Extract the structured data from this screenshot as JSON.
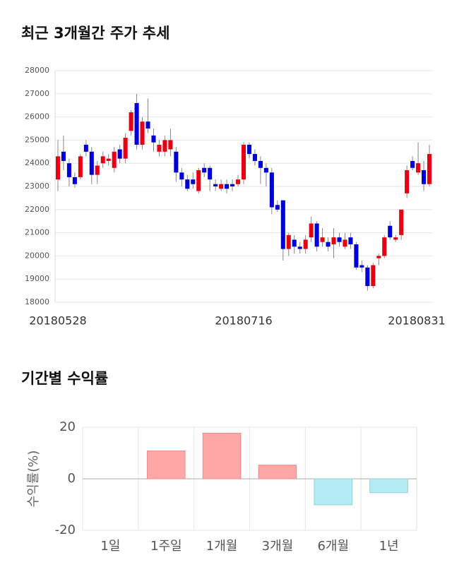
{
  "chart_data": [
    {
      "type": "candlestick",
      "title": "최근 3개월간 주가 추세",
      "categories": [
        "20180528",
        null,
        null,
        null,
        null,
        null,
        null,
        null,
        null,
        null,
        null,
        null,
        null,
        null,
        null,
        null,
        null,
        null,
        null,
        null,
        null,
        null,
        null,
        null,
        null,
        null,
        null,
        null,
        null,
        null,
        null,
        null,
        null,
        "20180716",
        null,
        null,
        null,
        null,
        null,
        null,
        null,
        null,
        null,
        null,
        null,
        null,
        null,
        null,
        null,
        null,
        null,
        null,
        null,
        null,
        null,
        null,
        null,
        null,
        null,
        null,
        null,
        null,
        null,
        null,
        null,
        null,
        "20180831"
      ],
      "open": [
        23300,
        24500,
        24000,
        23400,
        23400,
        24800,
        24500,
        23500,
        24000,
        24100,
        23800,
        24600,
        24200,
        25400,
        26600,
        24800,
        25800,
        25200,
        24500,
        24500,
        24600,
        24500,
        23600,
        23300,
        23300,
        22800,
        23800,
        23800,
        23100,
        22900,
        23100,
        23100,
        23100,
        23300,
        24800,
        24400,
        24100,
        23800,
        23600,
        22200,
        22400,
        20300,
        20700,
        20400,
        20300,
        20800,
        21400,
        20600,
        20600,
        20500,
        20800,
        20400,
        20800,
        20500,
        19600,
        19500,
        18700,
        19900,
        20000,
        21300,
        20700,
        20900,
        22700,
        24100,
        23600,
        23700,
        23100
      ],
      "high": [
        25000,
        25200,
        24200,
        23600,
        24400,
        25000,
        24700,
        24100,
        24500,
        24400,
        24700,
        24800,
        25300,
        26300,
        27000,
        26000,
        26800,
        25500,
        25000,
        25200,
        25500,
        24700,
        23800,
        23500,
        23600,
        23800,
        24000,
        23900,
        23300,
        23300,
        23300,
        23300,
        23500,
        24900,
        24900,
        24600,
        24300,
        24000,
        23800,
        22400,
        22400,
        21000,
        20900,
        20600,
        20900,
        21700,
        21500,
        21200,
        20800,
        21200,
        21000,
        21000,
        21000,
        20600,
        19800,
        19600,
        19700,
        20100,
        20900,
        21500,
        20900,
        22000,
        23900,
        24300,
        24900,
        24100,
        24800
      ],
      "low": [
        22800,
        23700,
        23000,
        22950,
        23300,
        24300,
        23100,
        23100,
        23800,
        23900,
        23600,
        24000,
        24000,
        25200,
        24600,
        24600,
        25300,
        24500,
        24300,
        24300,
        24300,
        23200,
        23000,
        22800,
        22900,
        22700,
        23400,
        22800,
        22800,
        22800,
        22700,
        22800,
        23000,
        23100,
        24200,
        23900,
        23100,
        23000,
        21800,
        21900,
        19800,
        20000,
        20100,
        20100,
        20100,
        20600,
        20200,
        20400,
        20200,
        19900,
        20400,
        20300,
        20300,
        19400,
        19300,
        18500,
        18600,
        19600,
        19900,
        20700,
        20600,
        20700,
        22500,
        23700,
        23500,
        22800,
        23000
      ],
      "close": [
        24300,
        24100,
        23400,
        23100,
        24300,
        24500,
        23500,
        23900,
        24300,
        24200,
        24500,
        24200,
        25100,
        26200,
        24800,
        25800,
        25500,
        24900,
        24800,
        25000,
        25000,
        23600,
        23300,
        22900,
        23100,
        23700,
        23600,
        23300,
        23000,
        23100,
        22900,
        23000,
        23300,
        24800,
        24400,
        24100,
        23800,
        23600,
        22100,
        22000,
        20300,
        20900,
        20400,
        20300,
        20700,
        21400,
        20400,
        20800,
        20400,
        20800,
        20600,
        20700,
        20500,
        19500,
        19500,
        18700,
        19600,
        20000,
        20800,
        20800,
        20800,
        22000,
        23700,
        23800,
        24000,
        23100,
        24400
      ],
      "up_color": "#e60012",
      "down_color": "#0000d6",
      "ylim": [
        18000,
        28000
      ],
      "yticks": [
        18000,
        19000,
        20000,
        21000,
        22000,
        23000,
        24000,
        25000,
        26000,
        27000,
        28000
      ],
      "grid": true
    },
    {
      "type": "bar",
      "title": "기간별 수익률",
      "y_label": "수익률(%)",
      "categories": [
        "1일",
        "1주일",
        "1개월",
        "3개월",
        "6개월",
        "1년"
      ],
      "values": [
        0,
        10.8,
        17.7,
        5.3,
        -10.1,
        -5.4
      ],
      "positive_color": "#ffa6a6",
      "negative_color": "#b5ecf3",
      "ylim": [
        -20,
        20
      ],
      "yticks": [
        -20,
        0,
        20
      ],
      "grid": true
    }
  ]
}
